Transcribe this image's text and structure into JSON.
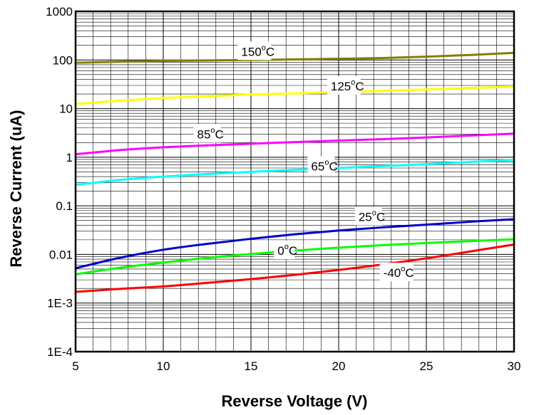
{
  "chart_data": {
    "type": "line",
    "title": "",
    "xlabel": "Reverse Voltage (V)",
    "ylabel": "Reverse Current (uA)",
    "x_scale": "linear",
    "y_scale": "log",
    "xlim": [
      5,
      30
    ],
    "ylim": [
      0.0001,
      1000
    ],
    "x_ticks": [
      5,
      10,
      15,
      20,
      25,
      30
    ],
    "x_tick_labels": [
      "5",
      "10",
      "15",
      "20",
      "25",
      "30"
    ],
    "y_ticks": [
      0.0001,
      0.001,
      0.01,
      0.1,
      1,
      10,
      100,
      1000
    ],
    "y_tick_labels": [
      "1E-4",
      "1E-3",
      "0.01",
      "0.1",
      "1",
      "10",
      "100",
      "1000"
    ],
    "grid": "on (major and minor, both axes)",
    "legend": "none — curves labelled inline",
    "series": [
      {
        "name": "150oC",
        "label_base": "150",
        "label_sup": "o",
        "label_unit": "C",
        "color": "#808000",
        "x": [
          5,
          7.5,
          10,
          12.5,
          15,
          17.5,
          20,
          22.5,
          25,
          27.5,
          30
        ],
        "y": [
          88,
          92,
          96,
          98,
          100,
          103,
          106,
          110,
          117,
          127,
          140
        ]
      },
      {
        "name": "125oC",
        "label_base": "125",
        "label_sup": "o",
        "label_unit": "C",
        "color": "#ffff00",
        "x": [
          5,
          7.5,
          10,
          12.5,
          15,
          17.5,
          20,
          22.5,
          25,
          27.5,
          30
        ],
        "y": [
          12.5,
          14.5,
          16.5,
          18,
          19.5,
          20.5,
          21.8,
          23.2,
          24.8,
          26.5,
          28.5
        ]
      },
      {
        "name": "85oC",
        "label_base": "85",
        "label_sup": "o",
        "label_unit": "C",
        "color": "#ff00ff",
        "x": [
          5,
          7.5,
          10,
          12.5,
          15,
          17.5,
          20,
          22.5,
          25,
          27.5,
          30
        ],
        "y": [
          1.15,
          1.4,
          1.6,
          1.75,
          1.9,
          2.05,
          2.2,
          2.35,
          2.55,
          2.8,
          3.05
        ]
      },
      {
        "name": "65oC",
        "label_base": "65",
        "label_sup": "o",
        "label_unit": "C",
        "color": "#00ffff",
        "x": [
          5,
          7.5,
          10,
          12.5,
          15,
          17.5,
          20,
          22.5,
          25,
          27.5,
          30
        ],
        "y": [
          0.27,
          0.34,
          0.4,
          0.45,
          0.5,
          0.55,
          0.6,
          0.66,
          0.72,
          0.8,
          0.88
        ]
      },
      {
        "name": "25oC",
        "label_base": "25",
        "label_sup": "o",
        "label_unit": "C",
        "color": "#0000cc",
        "x": [
          5,
          7.5,
          10,
          12.5,
          15,
          17.5,
          20,
          22.5,
          25,
          27.5,
          30
        ],
        "y": [
          0.0052,
          0.0085,
          0.0125,
          0.0165,
          0.021,
          0.026,
          0.031,
          0.036,
          0.041,
          0.047,
          0.053
        ]
      },
      {
        "name": "0oC",
        "label_base": "0",
        "label_sup": "o",
        "label_unit": "C",
        "color": "#00ff00",
        "x": [
          5,
          7.5,
          10,
          12.5,
          15,
          17.5,
          20,
          22.5,
          25,
          27.5,
          30
        ],
        "y": [
          0.0039,
          0.0053,
          0.0068,
          0.0085,
          0.0102,
          0.012,
          0.0138,
          0.0155,
          0.0172,
          0.0188,
          0.0205
        ]
      },
      {
        "name": "-40oC",
        "label_base": "-40",
        "label_sup": "o",
        "label_unit": "C",
        "color": "#ff0000",
        "x": [
          5,
          7.5,
          10,
          12.5,
          15,
          17.5,
          20,
          22.5,
          25,
          27.5,
          30
        ],
        "y": [
          0.0017,
          0.00195,
          0.0022,
          0.0026,
          0.0031,
          0.0038,
          0.0048,
          0.0062,
          0.0083,
          0.0115,
          0.016
        ]
      }
    ]
  }
}
